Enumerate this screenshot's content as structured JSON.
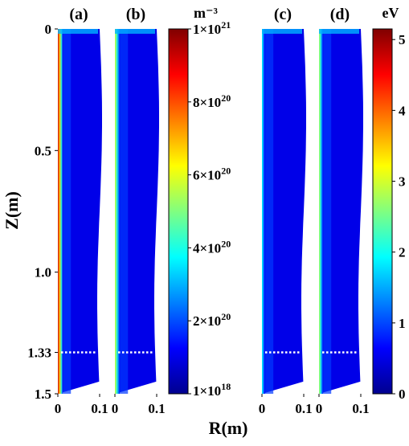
{
  "chart_data": {
    "type": "heatmap",
    "y_axis": {
      "label": "Z(m)",
      "range": [
        0,
        1.5
      ],
      "ticks": [
        {
          "value": 0,
          "label": "0"
        },
        {
          "value": 0.5,
          "label": "0.5"
        },
        {
          "value": 1.0,
          "label": "1.0"
        },
        {
          "value": 1.33,
          "label": "1.33"
        },
        {
          "value": 1.5,
          "label": "1.5"
        }
      ]
    },
    "x_axis": {
      "label": "R(m)",
      "range": [
        0,
        0.1
      ],
      "ticks": [
        {
          "value": 0,
          "label": "0"
        },
        {
          "value": 0.1,
          "label": "0.1"
        }
      ]
    },
    "marker_line": {
      "z": 1.33,
      "style": "dotted",
      "color": "#ffffff"
    },
    "panels": [
      {
        "label": "(a)",
        "quantity": "density",
        "core_level": 0.92,
        "core_width_r": 0.012
      },
      {
        "label": "(b)",
        "quantity": "density",
        "core_level": 0.58,
        "core_width_r": 0.012
      },
      {
        "label": "(c)",
        "quantity": "temperature",
        "core_level": 0.38,
        "core_width_r": 0.008
      },
      {
        "label": "(d)",
        "quantity": "temperature",
        "core_level": 0.55,
        "core_width_r": 0.01
      }
    ],
    "colorbars": [
      {
        "unit": "m⁻³",
        "range": [
          1e+18,
          1e+21
        ],
        "ticks": [
          {
            "position": 0.0,
            "mantissa": "1×10",
            "exp": "18"
          },
          {
            "position": 0.2,
            "mantissa": "2×10",
            "exp": "20"
          },
          {
            "position": 0.4,
            "mantissa": "4×10",
            "exp": "20"
          },
          {
            "position": 0.6,
            "mantissa": "6×10",
            "exp": "20"
          },
          {
            "position": 0.8,
            "mantissa": "8×10",
            "exp": "20"
          },
          {
            "position": 1.0,
            "mantissa": "1×10",
            "exp": "21"
          }
        ]
      },
      {
        "unit": "eV",
        "range": [
          0,
          5.15
        ],
        "ticks": [
          {
            "value": 0,
            "label": "0"
          },
          {
            "value": 1,
            "label": "1"
          },
          {
            "value": 2,
            "label": "2"
          },
          {
            "value": 3,
            "label": "3"
          },
          {
            "value": 4,
            "label": "4"
          },
          {
            "value": 5,
            "label": "5"
          }
        ]
      }
    ],
    "colormap": [
      "#00008f",
      "#0000ff",
      "#0080ff",
      "#00ffff",
      "#80ff80",
      "#ffff00",
      "#ff8000",
      "#ff0000",
      "#800000"
    ]
  }
}
